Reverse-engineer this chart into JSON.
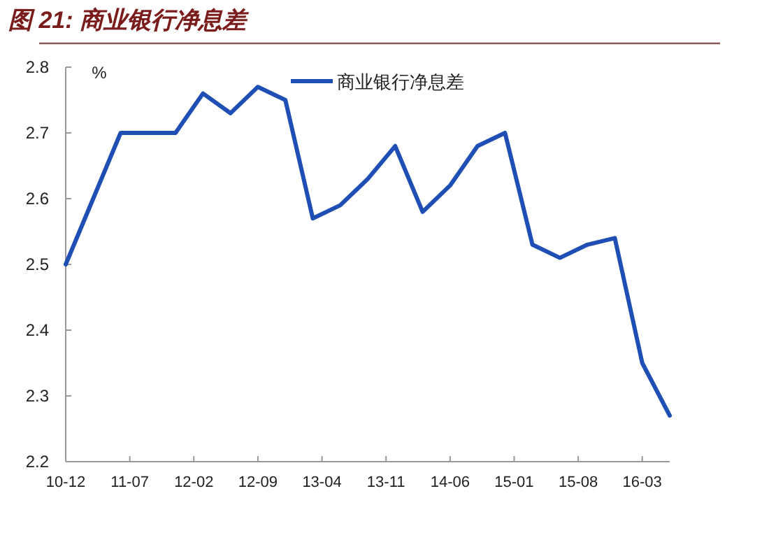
{
  "chart_data": {
    "type": "line",
    "title": "图 21: 商业银行净息差",
    "ylabel": "%",
    "x": [
      "2010-12",
      "2011-03",
      "2011-06",
      "2011-09",
      "2011-12",
      "2012-03",
      "2012-06",
      "2012-09",
      "2012-12",
      "2013-03",
      "2013-06",
      "2013-09",
      "2013-12",
      "2014-03",
      "2014-06",
      "2014-09",
      "2014-12",
      "2015-03",
      "2015-06",
      "2015-09",
      "2015-12",
      "2016-03",
      "2016-06"
    ],
    "series": [
      {
        "name": "商业银行净息差",
        "color": "#1f4fb4",
        "values": [
          2.5,
          2.6,
          2.7,
          2.7,
          2.7,
          2.76,
          2.73,
          2.77,
          2.75,
          2.57,
          2.59,
          2.63,
          2.68,
          2.58,
          2.62,
          2.68,
          2.7,
          2.53,
          2.51,
          2.53,
          2.54,
          2.35,
          2.27
        ]
      }
    ],
    "xlim": [
      "2010-12",
      "2016-06"
    ],
    "xticks": [
      {
        "value": "2010-12",
        "label": "10-12"
      },
      {
        "value": "2011-07",
        "label": "11-07"
      },
      {
        "value": "2012-02",
        "label": "12-02"
      },
      {
        "value": "2012-09",
        "label": "12-09"
      },
      {
        "value": "2013-04",
        "label": "13-04"
      },
      {
        "value": "2013-11",
        "label": "13-11"
      },
      {
        "value": "2014-06",
        "label": "14-06"
      },
      {
        "value": "2015-01",
        "label": "15-01"
      },
      {
        "value": "2015-08",
        "label": "15-08"
      },
      {
        "value": "2016-03",
        "label": "16-03"
      }
    ],
    "ylim": [
      2.2,
      2.8
    ],
    "yticks": [
      2.2,
      2.3,
      2.4,
      2.5,
      2.6,
      2.7,
      2.8
    ],
    "grid": false,
    "legend": "top right",
    "marker": "none",
    "line_style": "solid"
  }
}
